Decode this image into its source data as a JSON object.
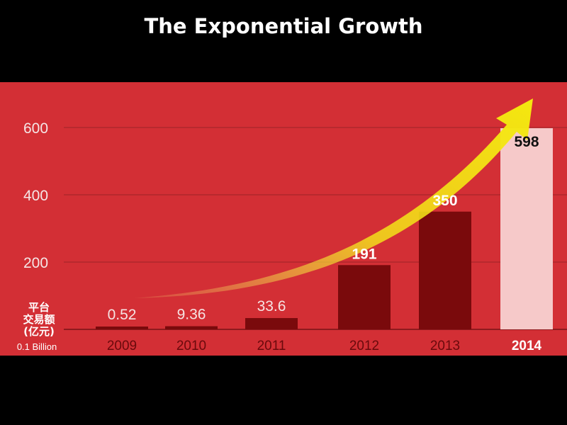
{
  "slide": {
    "title": "The Exponential Growth"
  },
  "colors": {
    "background": "#000000",
    "panel": "#d32f35",
    "bar": "#7a0a0c",
    "highlight_bar": "#f6c9c9",
    "arrow": "#f3e01a"
  },
  "chart_data": {
    "type": "bar",
    "categories": [
      "2009",
      "2010",
      "2011",
      "2012",
      "2013",
      "2014"
    ],
    "values": [
      0.52,
      9.36,
      33.6,
      191,
      350,
      598
    ],
    "value_labels": [
      "0.52",
      "9.36",
      "33.6",
      "191",
      "350",
      "598"
    ],
    "highlight_index": 5,
    "ylabel": "平台交易额(亿元)",
    "ylabel_lines": [
      "平台",
      "交易额",
      "(亿元)"
    ],
    "unit_note": "0.1 Billion",
    "ylim": [
      0,
      600
    ],
    "yticks": [
      200,
      400,
      600
    ],
    "grid": true,
    "annotation": "yellow upward trend arrow"
  }
}
